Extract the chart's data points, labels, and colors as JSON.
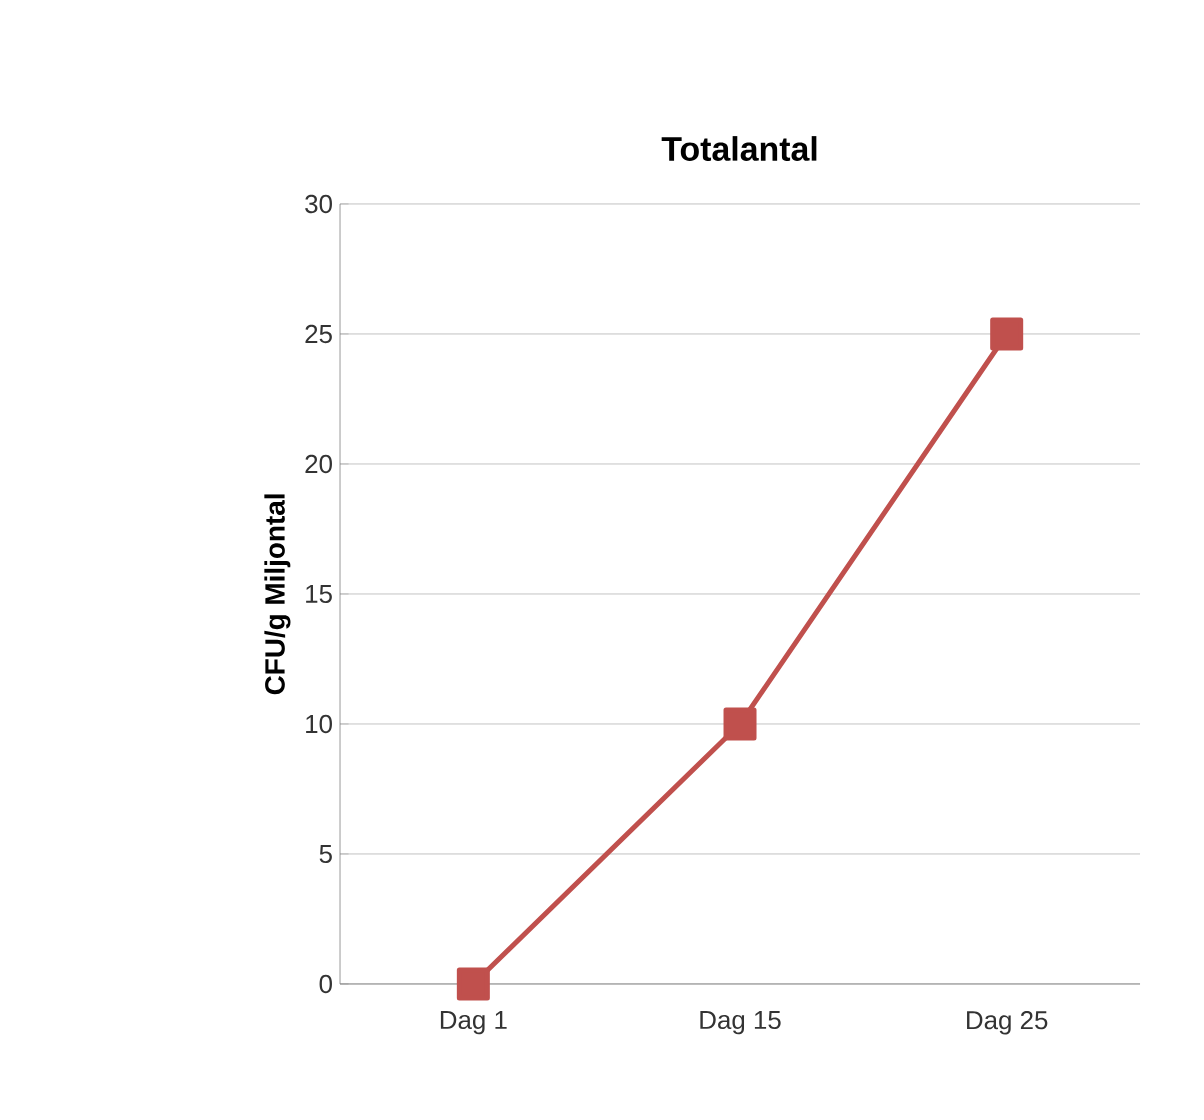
{
  "chart_data": {
    "type": "line",
    "title": "Totalantal",
    "ylabel": "CFU/g  Miljontal",
    "categories": [
      "Dag 1",
      "Dag 15",
      "Dag 25"
    ],
    "series": [
      {
        "color": "#c0504d",
        "values": [
          0,
          10,
          25
        ]
      }
    ],
    "ylim": [
      0,
      30
    ],
    "yticks": [
      0,
      5,
      10,
      15,
      20,
      25,
      30
    ],
    "grid": "y",
    "marker": "square",
    "line_style": "solid"
  }
}
